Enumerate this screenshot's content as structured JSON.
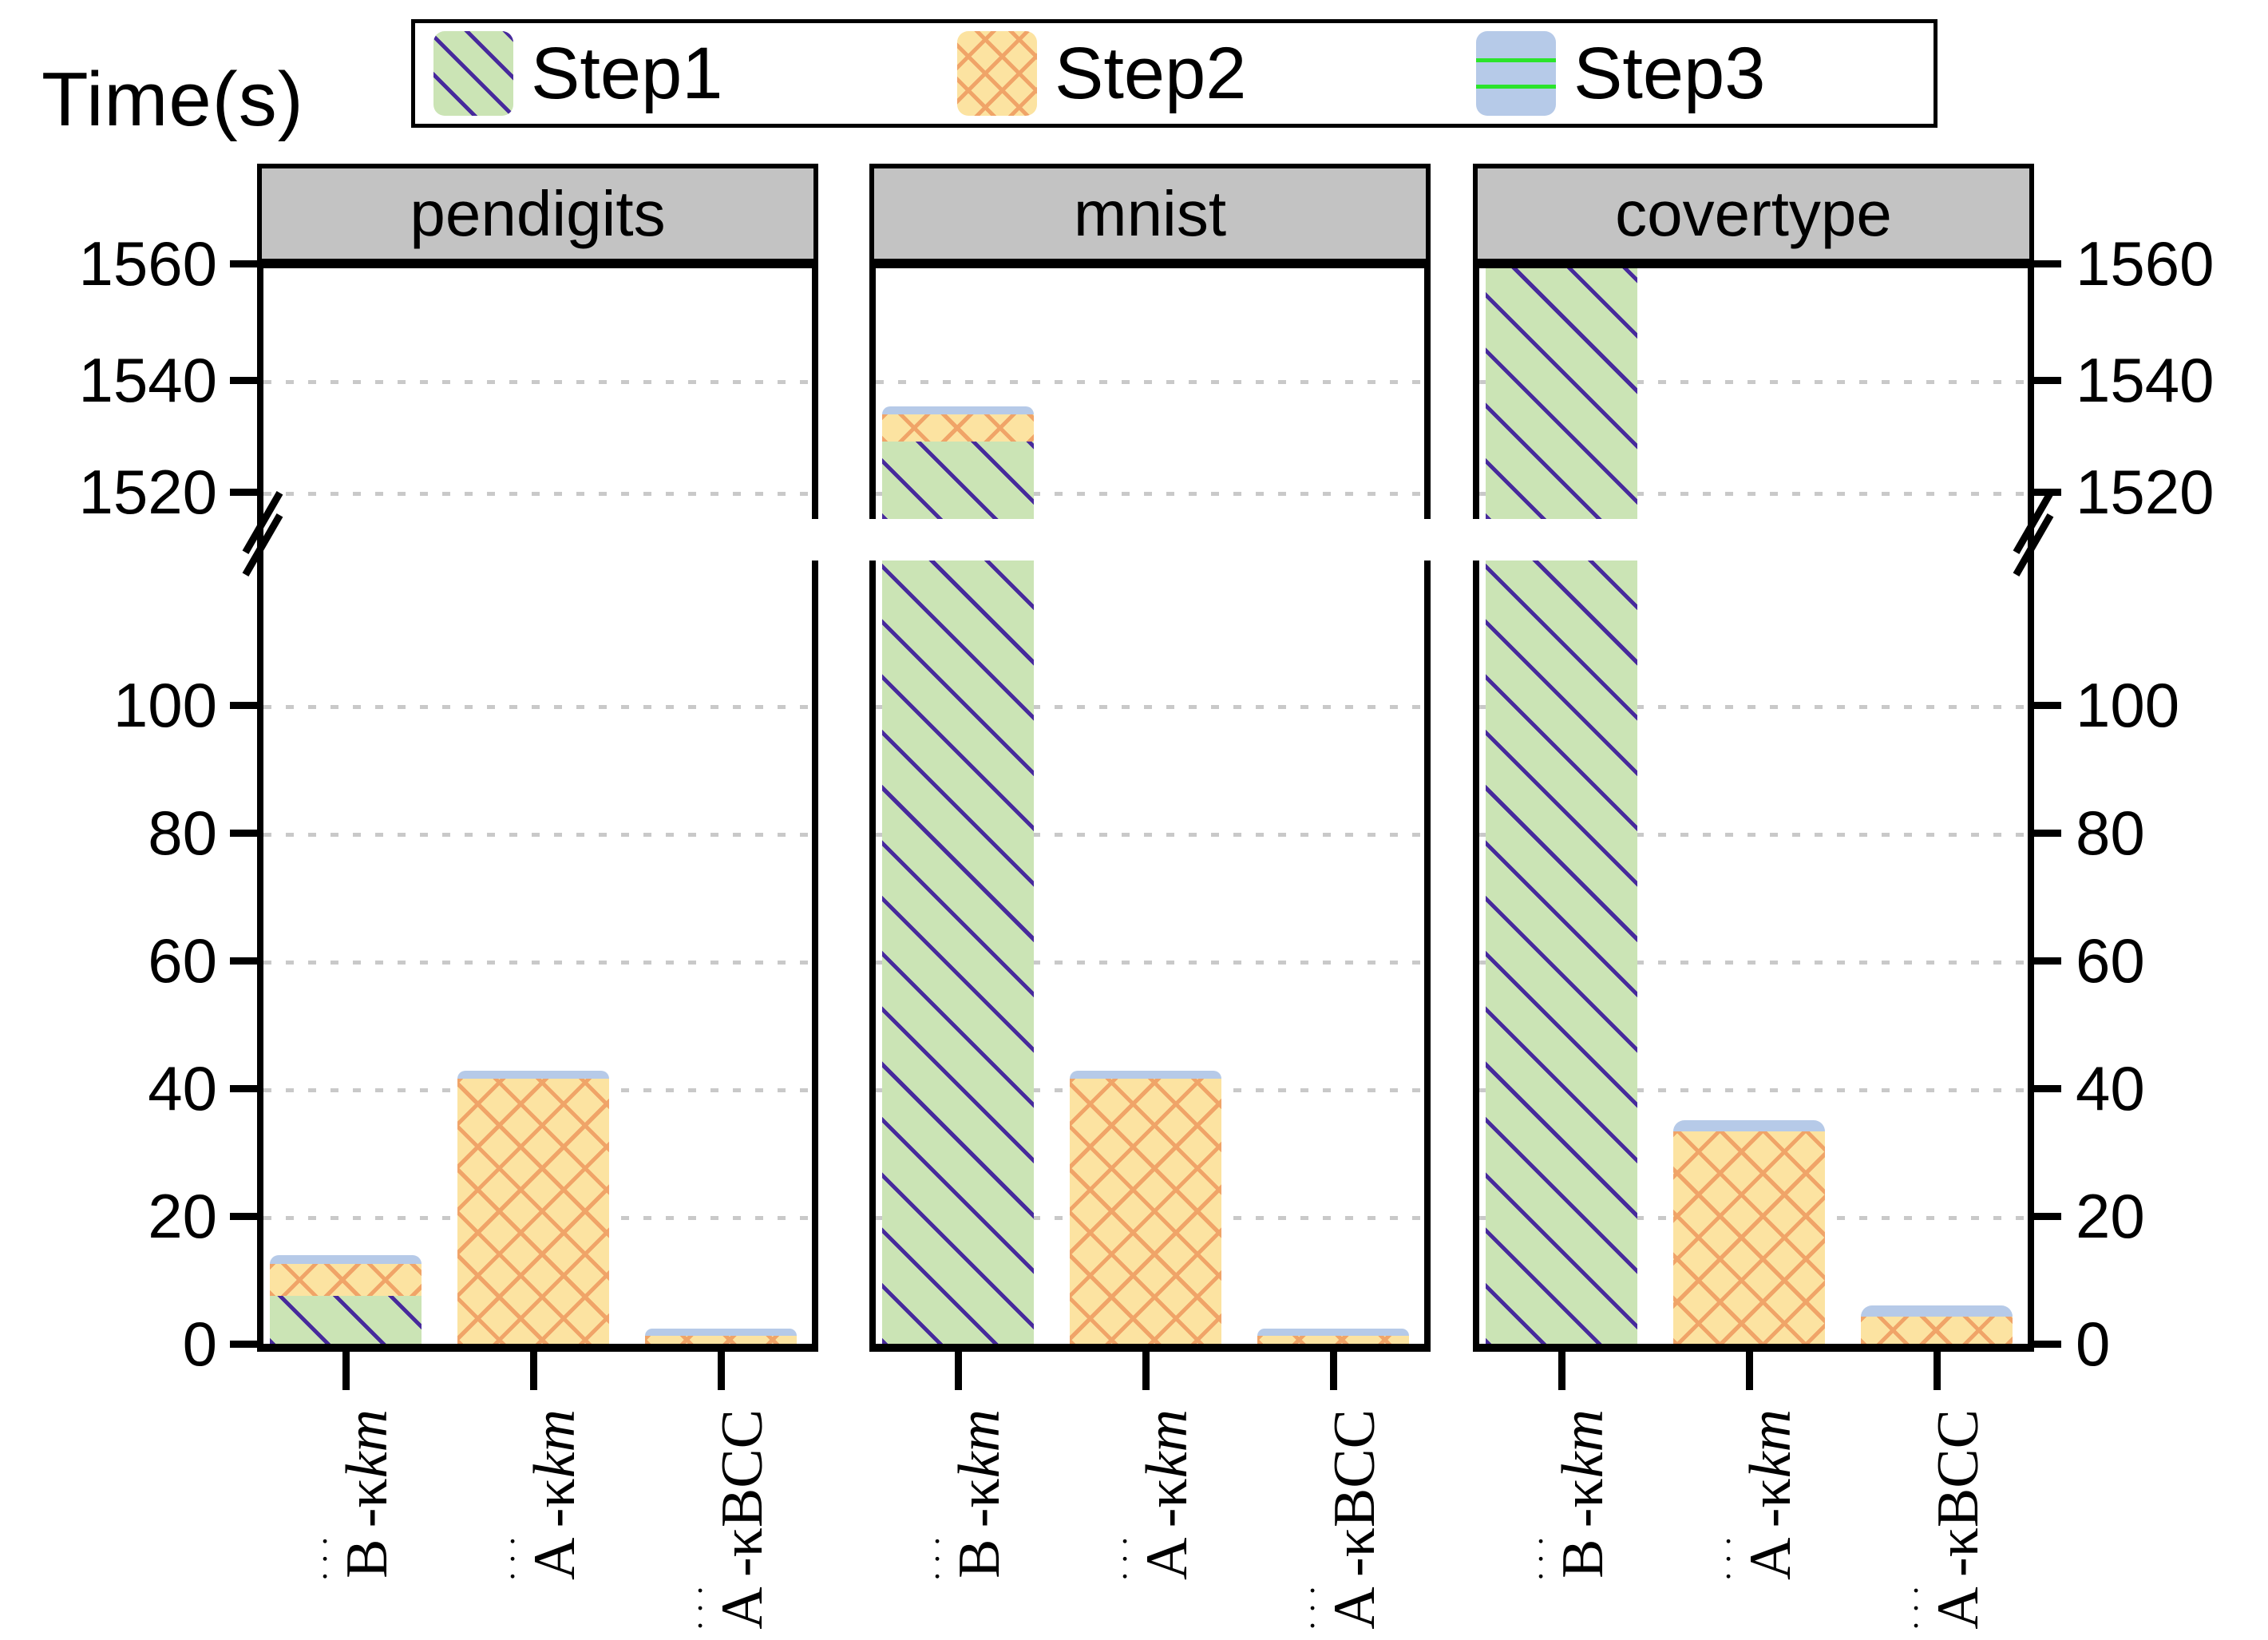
{
  "title": "Time(s)",
  "legend": {
    "items": [
      {
        "label": "Step1",
        "pattern": "diagonal-hatch",
        "fill": "#cbe4b5",
        "line": "#472a9c"
      },
      {
        "label": "Step2",
        "pattern": "cross-hatch",
        "fill": "#fce3a1",
        "line": "#f0a468"
      },
      {
        "label": "Step3",
        "pattern": "horizontal-lines",
        "fill": "#b6cae8",
        "line": "#2be42b"
      }
    ]
  },
  "axis": {
    "top_tick_labels": [
      "1560",
      "1540",
      "1520"
    ],
    "bottom_tick_labels": [
      "100",
      "80",
      "60",
      "40",
      "20",
      "0"
    ],
    "broken_axis": true
  },
  "xlabels": [
    {
      "dots": "···",
      "base": "B",
      "mid": "-κ",
      "tail": "km",
      "italic_tail": true
    },
    {
      "dots": "···",
      "base": "A",
      "mid": "-κ",
      "tail": "km",
      "italic_tail": true
    },
    {
      "dots": "···",
      "base": "A",
      "mid": "-κ",
      "tail": "BCC",
      "italic_tail": false
    }
  ],
  "chart_data": {
    "type": "bar",
    "stacked": true,
    "ylabel": "Time(s)",
    "panels": [
      "pendigits",
      "mnist",
      "covertype"
    ],
    "categories": [
      "B⃛-κkm",
      "A⃛-κkm",
      "A⃛-κBCC"
    ],
    "series": [
      {
        "name": "Step1",
        "values": {
          "pendigits": [
            7.5,
            0,
            0
          ],
          "mnist": [
            1529,
            0,
            0
          ],
          "covertype": [
            1560,
            0,
            0
          ]
        }
      },
      {
        "name": "Step2",
        "values": {
          "pendigits": [
            5.0,
            41.5,
            1.2
          ],
          "mnist": [
            4.8,
            41.5,
            1.2
          ],
          "covertype": [
            0,
            33.2,
            4.2
          ]
        }
      },
      {
        "name": "Step3",
        "values": {
          "pendigits": [
            1.4,
            1.2,
            1.2
          ],
          "mnist": [
            1.5,
            1.2,
            1.2
          ],
          "covertype": [
            0,
            1.8,
            1.8
          ]
        }
      }
    ],
    "y_axis_break_between": [
      115,
      1515
    ],
    "top_axis_range": [
      1515,
      1560
    ],
    "bottom_axis_range": [
      0,
      122
    ],
    "top_ticks": [
      1520,
      1540,
      1560
    ],
    "bottom_ticks": [
      0,
      20,
      40,
      60,
      80,
      100
    ],
    "grid": "dotted-horizontal",
    "legend_position": "top-center",
    "note": "covertype B⃛-κkm Step1 bar is clipped at the 1560 axis top"
  }
}
